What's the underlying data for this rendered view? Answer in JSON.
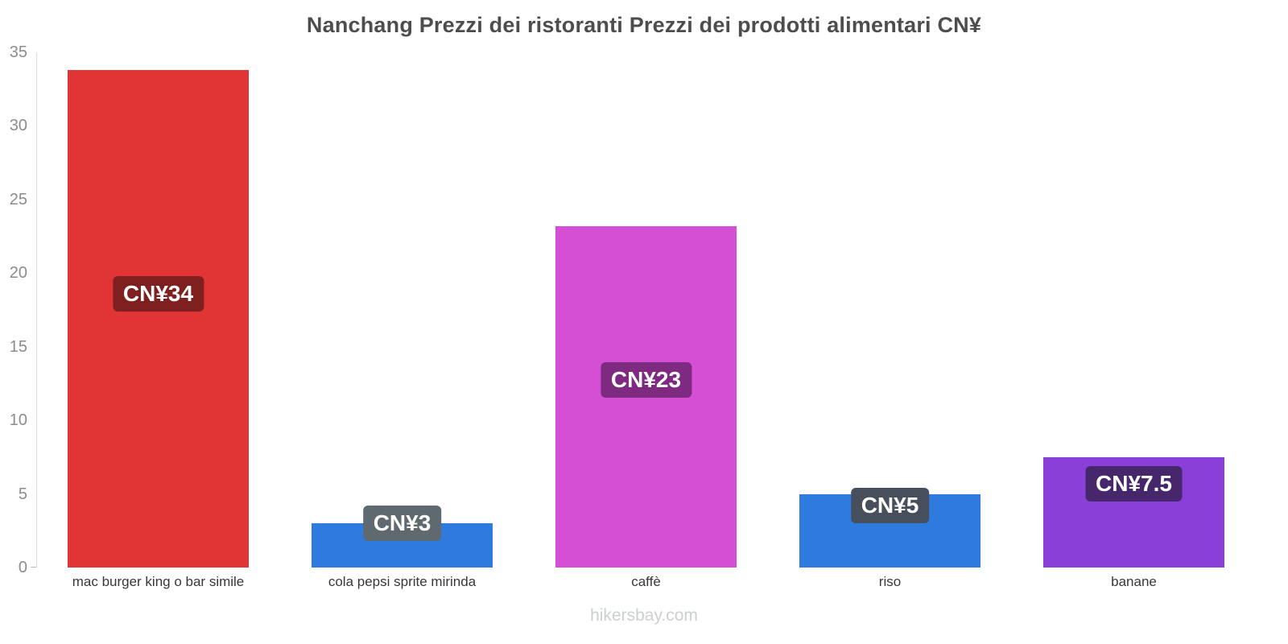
{
  "title": "Nanchang Prezzi dei ristoranti Prezzi dei prodotti alimentari CN¥",
  "footer": "hikersbay.com",
  "chart_data": {
    "type": "bar",
    "title": "Nanchang Prezzi dei ristoranti Prezzi dei prodotti alimentari CN¥",
    "categories": [
      "mac burger king o bar simile",
      "cola pepsi sprite mirinda",
      "caffè",
      "riso",
      "banane"
    ],
    "values": [
      33.8,
      3,
      23.2,
      5,
      7.5
    ],
    "value_labels": [
      "CN¥34",
      "CN¥3",
      "CN¥23",
      "CN¥5",
      "CN¥7.5"
    ],
    "bar_colors": [
      "#e13434",
      "#2e7ade",
      "#d44fd4",
      "#2e7ade",
      "#8a3fd8"
    ],
    "label_bg_colors": [
      "#7e2020",
      "#5f6a70",
      "#7e2a80",
      "#474f5c",
      "#46276b"
    ],
    "currency": "CN¥",
    "xlabel": "",
    "ylabel": "",
    "ylim": [
      0,
      35
    ],
    "yticks": [
      0,
      5,
      10,
      15,
      20,
      25,
      30,
      35
    ],
    "grid": false,
    "legend": false,
    "watermark": "hikersbay.com"
  }
}
